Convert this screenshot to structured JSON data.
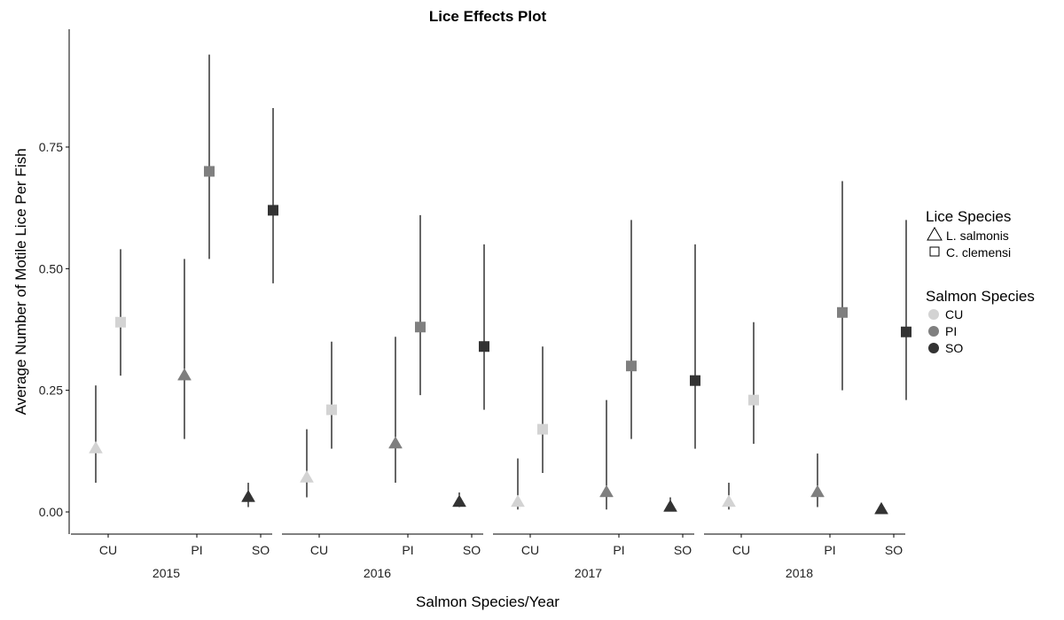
{
  "chart_data": {
    "type": "scatter",
    "title": "Lice Effects Plot",
    "xlabel": "Salmon Species/Year",
    "ylabel": "Average Number of Motile Lice Per Fish",
    "ylim": [
      -0.08,
      0.98
    ],
    "yticks": [
      "0.00",
      "0.25",
      "0.50",
      "0.75"
    ],
    "grid": false,
    "years": [
      "2015",
      "2016",
      "2017",
      "2018"
    ],
    "salmon_species": [
      "CU",
      "PI",
      "SO"
    ],
    "legend": {
      "placement": "right",
      "lice_title": "Lice Species",
      "lice": [
        {
          "label": "L. salmonis",
          "shape": "triangle"
        },
        {
          "label": "C. clemensi",
          "shape": "square"
        }
      ],
      "salmon_title": "Salmon Species",
      "salmon": [
        {
          "label": "CU",
          "color": "#d3d3d3"
        },
        {
          "label": "PI",
          "color": "#7f7f7f"
        },
        {
          "label": "SO",
          "color": "#333333"
        }
      ]
    },
    "points": [
      {
        "year": "2015",
        "salmon": "CU",
        "lice": "L. salmonis",
        "value": 0.13,
        "lower": 0.06,
        "upper": 0.26
      },
      {
        "year": "2015",
        "salmon": "CU",
        "lice": "C. clemensi",
        "value": 0.39,
        "lower": 0.28,
        "upper": 0.54
      },
      {
        "year": "2015",
        "salmon": "PI",
        "lice": "L. salmonis",
        "value": 0.28,
        "lower": 0.15,
        "upper": 0.52
      },
      {
        "year": "2015",
        "salmon": "PI",
        "lice": "C. clemensi",
        "value": 0.7,
        "lower": 0.52,
        "upper": 0.94
      },
      {
        "year": "2015",
        "salmon": "SO",
        "lice": "L. salmonis",
        "value": 0.03,
        "lower": 0.01,
        "upper": 0.06
      },
      {
        "year": "2015",
        "salmon": "SO",
        "lice": "C. clemensi",
        "value": 0.62,
        "lower": 0.47,
        "upper": 0.83
      },
      {
        "year": "2016",
        "salmon": "CU",
        "lice": "L. salmonis",
        "value": 0.07,
        "lower": 0.03,
        "upper": 0.17
      },
      {
        "year": "2016",
        "salmon": "CU",
        "lice": "C. clemensi",
        "value": 0.21,
        "lower": 0.13,
        "upper": 0.35
      },
      {
        "year": "2016",
        "salmon": "PI",
        "lice": "L. salmonis",
        "value": 0.14,
        "lower": 0.06,
        "upper": 0.36
      },
      {
        "year": "2016",
        "salmon": "PI",
        "lice": "C. clemensi",
        "value": 0.38,
        "lower": 0.24,
        "upper": 0.61
      },
      {
        "year": "2016",
        "salmon": "SO",
        "lice": "L. salmonis",
        "value": 0.02,
        "lower": 0.01,
        "upper": 0.04
      },
      {
        "year": "2016",
        "salmon": "SO",
        "lice": "C. clemensi",
        "value": 0.34,
        "lower": 0.21,
        "upper": 0.55
      },
      {
        "year": "2017",
        "salmon": "CU",
        "lice": "L. salmonis",
        "value": 0.02,
        "lower": 0.005,
        "upper": 0.11
      },
      {
        "year": "2017",
        "salmon": "CU",
        "lice": "C. clemensi",
        "value": 0.17,
        "lower": 0.08,
        "upper": 0.34
      },
      {
        "year": "2017",
        "salmon": "PI",
        "lice": "L. salmonis",
        "value": 0.04,
        "lower": 0.005,
        "upper": 0.23
      },
      {
        "year": "2017",
        "salmon": "PI",
        "lice": "C. clemensi",
        "value": 0.3,
        "lower": 0.15,
        "upper": 0.6
      },
      {
        "year": "2017",
        "salmon": "SO",
        "lice": "L. salmonis",
        "value": 0.01,
        "lower": 0.002,
        "upper": 0.03
      },
      {
        "year": "2017",
        "salmon": "SO",
        "lice": "C. clemensi",
        "value": 0.27,
        "lower": 0.13,
        "upper": 0.55
      },
      {
        "year": "2018",
        "salmon": "CU",
        "lice": "L. salmonis",
        "value": 0.02,
        "lower": 0.005,
        "upper": 0.06
      },
      {
        "year": "2018",
        "salmon": "CU",
        "lice": "C. clemensi",
        "value": 0.23,
        "lower": 0.14,
        "upper": 0.39
      },
      {
        "year": "2018",
        "salmon": "PI",
        "lice": "L. salmonis",
        "value": 0.04,
        "lower": 0.01,
        "upper": 0.12
      },
      {
        "year": "2018",
        "salmon": "PI",
        "lice": "C. clemensi",
        "value": 0.41,
        "lower": 0.25,
        "upper": 0.68
      },
      {
        "year": "2018",
        "salmon": "SO",
        "lice": "L. salmonis",
        "value": 0.005,
        "lower": 0.001,
        "upper": 0.01
      },
      {
        "year": "2018",
        "salmon": "SO",
        "lice": "C. clemensi",
        "value": 0.37,
        "lower": 0.23,
        "upper": 0.6
      }
    ]
  }
}
